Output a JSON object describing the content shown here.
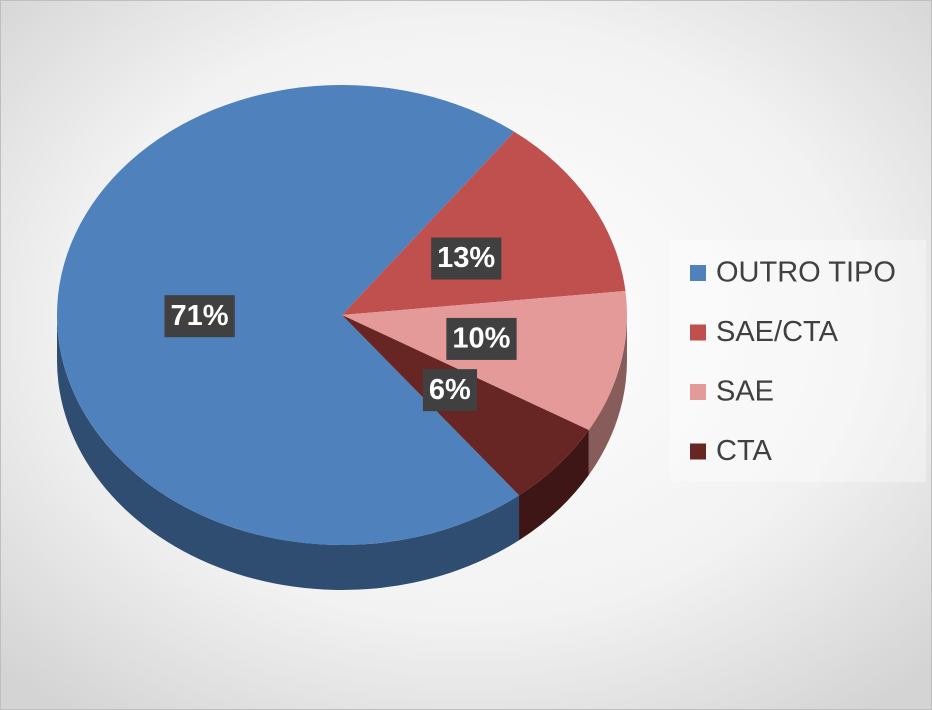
{
  "chart_data": {
    "type": "pie",
    "categories": [
      "OUTRO TIPO",
      "SAE/CTA",
      "SAE",
      "CTA"
    ],
    "values": [
      71,
      13,
      10,
      6
    ],
    "value_labels": [
      "71%",
      "13%",
      "10%",
      "6%"
    ],
    "colors": [
      "#4f81bd",
      "#c0504d",
      "#e39a98",
      "#672524"
    ],
    "legend": "right"
  }
}
